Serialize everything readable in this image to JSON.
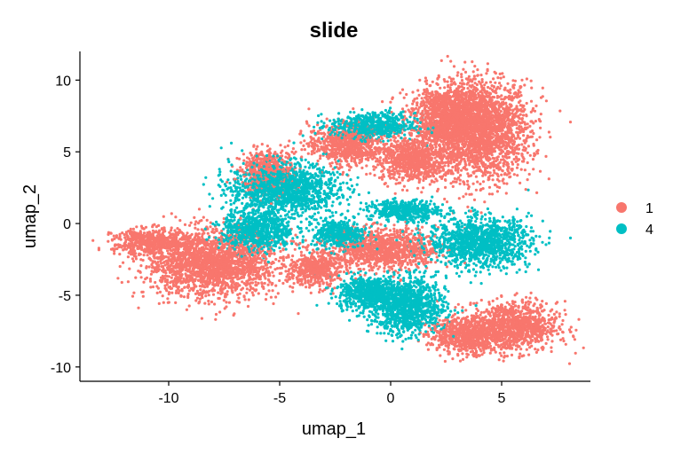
{
  "chart_data": {
    "type": "scatter",
    "title": "slide",
    "xlabel": "umap_1",
    "ylabel": "umap_2",
    "xlim": [
      -14,
      9
    ],
    "ylim": [
      -11,
      12
    ],
    "xticks": [
      "-10",
      "-5",
      "0",
      "5"
    ],
    "yticks": [
      "-10",
      "-5",
      "0",
      "5",
      "10"
    ],
    "grid": false,
    "legend_position": "right",
    "series": [
      {
        "name": "1",
        "color": "#F8766D",
        "clusters": [
          {
            "cx": 4.0,
            "cy": 6.5,
            "rx": 2.3,
            "ry": 3.4
          },
          {
            "cx": 2.5,
            "cy": 7.5,
            "rx": 1.6,
            "ry": 2.0
          },
          {
            "cx": 1.0,
            "cy": 4.5,
            "rx": 1.5,
            "ry": 1.6
          },
          {
            "cx": -2.0,
            "cy": 5.5,
            "rx": 1.7,
            "ry": 1.4
          },
          {
            "cx": -0.3,
            "cy": -1.8,
            "rx": 2.4,
            "ry": 1.4
          },
          {
            "cx": 5.5,
            "cy": -7.2,
            "rx": 2.0,
            "ry": 1.7
          },
          {
            "cx": 3.3,
            "cy": -7.8,
            "rx": 1.6,
            "ry": 1.2
          },
          {
            "cx": -8.0,
            "cy": -2.8,
            "rx": 3.0,
            "ry": 2.3
          },
          {
            "cx": -10.8,
            "cy": -1.3,
            "rx": 1.7,
            "ry": 0.9
          },
          {
            "cx": -5.5,
            "cy": 3.6,
            "rx": 1.2,
            "ry": 1.5
          },
          {
            "cx": -3.4,
            "cy": -3.2,
            "rx": 1.1,
            "ry": 1.2
          }
        ]
      },
      {
        "name": "4",
        "color": "#00BFC4",
        "clusters": [
          {
            "cx": 4.0,
            "cy": -1.3,
            "rx": 2.3,
            "ry": 1.7
          },
          {
            "cx": 0.8,
            "cy": -5.8,
            "rx": 1.7,
            "ry": 2.0
          },
          {
            "cx": -1.0,
            "cy": -4.8,
            "rx": 1.4,
            "ry": 1.2
          },
          {
            "cx": -4.8,
            "cy": 2.4,
            "rx": 2.4,
            "ry": 1.8
          },
          {
            "cx": -6.0,
            "cy": -0.5,
            "rx": 1.6,
            "ry": 1.4
          },
          {
            "cx": -0.8,
            "cy": 6.8,
            "rx": 1.9,
            "ry": 0.9
          },
          {
            "cx": -2.3,
            "cy": -0.7,
            "rx": 1.2,
            "ry": 1.0
          },
          {
            "cx": 0.6,
            "cy": 0.9,
            "rx": 1.6,
            "ry": 0.7
          }
        ]
      }
    ]
  }
}
